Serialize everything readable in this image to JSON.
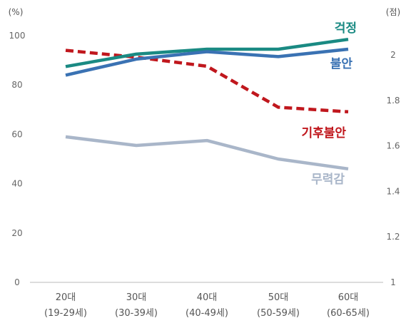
{
  "chart_data": {
    "type": "line",
    "categories": [
      {
        "top": "20대",
        "bottom": "(19-29세)"
      },
      {
        "top": "30대",
        "bottom": "(30-39세)"
      },
      {
        "top": "40대",
        "bottom": "(40-49세)"
      },
      {
        "top": "50대",
        "bottom": "(50-59세)"
      },
      {
        "top": "60대",
        "bottom": "(60-65세)"
      }
    ],
    "left_axis": {
      "unit": "(%)",
      "ylim": [
        0,
        100
      ],
      "ticks": [
        "0",
        "20",
        "40",
        "60",
        "80",
        "100"
      ]
    },
    "right_axis": {
      "unit": "(점)",
      "ylim": [
        1,
        2.1
      ],
      "ticks": [
        "1",
        "1.2",
        "1.4",
        "1.6",
        "1.8",
        "2"
      ]
    },
    "grid": false,
    "series": [
      {
        "name": "걱정",
        "axis": "left",
        "color": "#1a8a83",
        "dashed": false,
        "values": [
          87.5,
          92.5,
          94.5,
          94.5,
          98.5
        ]
      },
      {
        "name": "불안",
        "axis": "left",
        "color": "#3a72b3",
        "dashed": false,
        "values": [
          84,
          90.5,
          93.5,
          91.5,
          94.5
        ]
      },
      {
        "name": "기후불안",
        "axis": "right",
        "color": "#c0171d",
        "dashed": true,
        "values": [
          2.02,
          1.99,
          1.95,
          1.77,
          1.75
        ]
      },
      {
        "name": "무력감",
        "axis": "left",
        "color": "#a9b6c9",
        "dashed": false,
        "values": [
          59,
          55.5,
          57.5,
          50,
          46
        ]
      }
    ]
  }
}
